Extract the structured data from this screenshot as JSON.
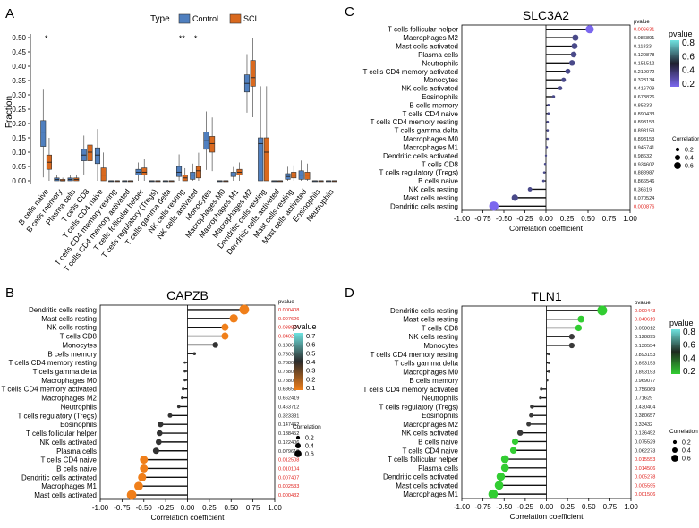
{
  "panels": {
    "a": {
      "letter": "A",
      "ylabel": "Fraction",
      "legend": {
        "title": "Type",
        "items": [
          "Control",
          "SCI"
        ],
        "colors": [
          "#4f7fbf",
          "#d9691e"
        ]
      },
      "yticks": [
        "0.00",
        "0.05",
        "0.10",
        "0.15",
        "0.20",
        "0.25",
        "0.30",
        "0.35",
        "0.40",
        "0.45",
        "0.50"
      ],
      "stars": [
        {
          "category": "B cells naive",
          "text": "*"
        },
        {
          "category": "NK cells resting",
          "text": "**"
        },
        {
          "category": "NK cells activated",
          "text": "*"
        }
      ]
    },
    "b": {
      "letter": "B"
    },
    "c": {
      "letter": "C"
    },
    "d": {
      "letter": "D"
    }
  },
  "chart_data": [
    {
      "id": "a",
      "type": "boxplot",
      "ylim": [
        0,
        0.5
      ],
      "ylabel": "Fraction",
      "categories": [
        "B cells naive",
        "B cells memory",
        "Plasma cells",
        "T cells CD8",
        "T cells CD4 naive",
        "T cells CD4 memory resting",
        "T cells CD4 memory activated",
        "T cells follicular helper",
        "T cells regulatory (Tregs)",
        "T cells gamma delta",
        "NK cells resting",
        "NK cells activated",
        "Monocytes",
        "Macrophages M0",
        "Macrophages M1",
        "Macrophages M2",
        "Dendritic cells resting",
        "Dendritic cells activated",
        "Mast cells resting",
        "Mast cells activated",
        "Eosinophils",
        "Neutrophils"
      ],
      "series": [
        {
          "name": "Control",
          "medians": [
            0.17,
            0.005,
            0.005,
            0.09,
            0.09,
            0.0,
            0.0,
            0.03,
            0.0,
            0.0,
            0.03,
            0.02,
            0.14,
            0.0,
            0.02,
            0.34,
            0.13,
            0.0,
            0.015,
            0.02,
            0.0,
            0.0
          ],
          "q1": [
            0.12,
            0.0,
            0.0,
            0.07,
            0.06,
            0.0,
            0.0,
            0.02,
            0.0,
            0.0,
            0.015,
            0.005,
            0.11,
            0.0,
            0.015,
            0.31,
            0.0,
            0.0,
            0.005,
            0.005,
            0.0,
            0.0
          ],
          "q3": [
            0.21,
            0.01,
            0.01,
            0.11,
            0.115,
            0.0,
            0.0,
            0.04,
            0.0,
            0.0,
            0.05,
            0.03,
            0.17,
            0.0,
            0.03,
            0.37,
            0.15,
            0.0,
            0.025,
            0.035,
            0.0,
            0.0
          ]
        },
        {
          "name": "SCI",
          "medians": [
            0.065,
            0.0,
            0.005,
            0.1,
            0.02,
            0.0,
            0.0,
            0.03,
            0.0,
            0.0,
            0.01,
            0.035,
            0.13,
            0.0,
            0.03,
            0.36,
            0.1,
            0.0,
            0.02,
            0.02,
            0.0,
            0.0
          ],
          "q1": [
            0.04,
            0.0,
            0.0,
            0.07,
            0.0,
            0.0,
            0.0,
            0.02,
            0.0,
            0.0,
            0.0,
            0.01,
            0.1,
            0.0,
            0.02,
            0.33,
            0.0,
            0.0,
            0.01,
            0.005,
            0.0,
            0.0
          ],
          "q3": [
            0.09,
            0.005,
            0.01,
            0.125,
            0.045,
            0.0,
            0.0,
            0.045,
            0.0,
            0.0,
            0.02,
            0.05,
            0.155,
            0.0,
            0.04,
            0.42,
            0.15,
            0.0,
            0.03,
            0.03,
            0.0,
            0.0
          ]
        }
      ]
    },
    {
      "id": "b",
      "type": "lollipop",
      "title": "CAPZB",
      "xlabel": "Correlation coefficient",
      "xlim": [
        -1.0,
        1.0
      ],
      "xticks": [
        "-1.00",
        "-0.75",
        "-0.50",
        "-0.25",
        "0.00",
        "0.25",
        "0.50",
        "0.75",
        "1.00"
      ],
      "pvalue_header": "pvalue",
      "legend_title": "pvalue",
      "legend_ticks": [
        "0.7",
        "0.6",
        "0.5",
        "0.4",
        "0.3",
        "0.2",
        "0.1"
      ],
      "size_title": "Correlation",
      "size_items": [
        "0.2",
        "0.4",
        "0.6"
      ],
      "rows": [
        {
          "label": "Dendritic cells resting",
          "r": 0.65,
          "p": 0.000408,
          "ptext": "0.000408"
        },
        {
          "label": "Mast cells resting",
          "r": 0.53,
          "p": 0.007626,
          "ptext": "0.007626"
        },
        {
          "label": "NK cells resting",
          "r": 0.43,
          "p": 0.038874,
          "ptext": "0.038874"
        },
        {
          "label": "T cells CD8",
          "r": 0.43,
          "p": 0.040292,
          "ptext": "0.040292"
        },
        {
          "label": "Monocytes",
          "r": 0.32,
          "p": 0.138654,
          "ptext": "0.138654"
        },
        {
          "label": "B cells memory",
          "r": 0.08,
          "p": 0.750305,
          "ptext": "0.750305"
        },
        {
          "label": "T cells CD4 memory resting",
          "r": -0.03,
          "p": 0.788089,
          "ptext": "0.788089"
        },
        {
          "label": "T cells gamma delta",
          "r": -0.03,
          "p": 0.788089,
          "ptext": "0.788089"
        },
        {
          "label": "Macrophages M0",
          "r": -0.03,
          "p": 0.788089,
          "ptext": "0.788089"
        },
        {
          "label": "T cells CD4 memory activated",
          "r": -0.05,
          "p": 0.68651,
          "ptext": "0.68651"
        },
        {
          "label": "Macrophages M2",
          "r": -0.06,
          "p": 0.662419,
          "ptext": "0.662419"
        },
        {
          "label": "Neutrophils",
          "r": -0.1,
          "p": 0.463712,
          "ptext": "0.463712"
        },
        {
          "label": "T cells regulatory (Tregs)",
          "r": -0.2,
          "p": 0.323381,
          "ptext": "0.323381"
        },
        {
          "label": "Eosinophils",
          "r": -0.31,
          "p": 0.147462,
          "ptext": "0.147462"
        },
        {
          "label": "T cells follicular helper",
          "r": -0.32,
          "p": 0.138452,
          "ptext": "0.138452"
        },
        {
          "label": "NK cells activated",
          "r": -0.33,
          "p": 0.122406,
          "ptext": "0.122406"
        },
        {
          "label": "Plasma cells",
          "r": -0.36,
          "p": 0.079619,
          "ptext": "0.079619"
        },
        {
          "label": "T cells CD4 naive",
          "r": -0.5,
          "p": 0.012508,
          "ptext": "0.012508"
        },
        {
          "label": "B cells naive",
          "r": -0.5,
          "p": 0.010104,
          "ptext": "0.010104"
        },
        {
          "label": "Dendritic cells activated",
          "r": -0.52,
          "p": 0.007407,
          "ptext": "0.007407"
        },
        {
          "label": "Macrophages M1",
          "r": -0.56,
          "p": 0.002533,
          "ptext": "0.002533"
        },
        {
          "label": "Mast cells activated",
          "r": -0.64,
          "p": 0.000432,
          "ptext": "0.000432"
        }
      ]
    },
    {
      "id": "c",
      "type": "lollipop",
      "title": "SLC3A2",
      "xlabel": "Correlation coefficient",
      "xlim": [
        -1.0,
        1.0
      ],
      "xticks": [
        "-1.00",
        "-0.75",
        "-0.50",
        "-0.25",
        "0.00",
        "0.25",
        "0.50",
        "0.75",
        "1.00"
      ],
      "pvalue_header": "pvalue",
      "legend_title": "pvalue",
      "legend_ticks": [
        "0.8",
        "0.6",
        "0.4",
        "0.2"
      ],
      "size_title": "Correlation",
      "size_items": [
        "0.2",
        "0.4",
        "0.6"
      ],
      "rows": [
        {
          "label": "T cells follicular helper",
          "r": 0.52,
          "p": 0.006631,
          "ptext": "0.006631"
        },
        {
          "label": "Macrophages M2",
          "r": 0.35,
          "p": 0.086891,
          "ptext": "0.086891"
        },
        {
          "label": "Mast cells activated",
          "r": 0.34,
          "p": 0.11823,
          "ptext": "0.11823"
        },
        {
          "label": "Plasma cells",
          "r": 0.33,
          "p": 0.120878,
          "ptext": "0.120878"
        },
        {
          "label": "Neutrophils",
          "r": 0.31,
          "p": 0.151512,
          "ptext": "0.151512"
        },
        {
          "label": "T cells CD4 memory activated",
          "r": 0.26,
          "p": 0.219072,
          "ptext": "0.219072"
        },
        {
          "label": "Monocytes",
          "r": 0.21,
          "p": 0.323134,
          "ptext": "0.323134"
        },
        {
          "label": "NK cells activated",
          "r": 0.17,
          "p": 0.416709,
          "ptext": "0.416709"
        },
        {
          "label": "Eosinophils",
          "r": 0.09,
          "p": 0.673826,
          "ptext": "0.673826"
        },
        {
          "label": "B cells memory",
          "r": 0.03,
          "p": 0.85233,
          "ptext": "0.85233"
        },
        {
          "label": "T cells CD4 naive",
          "r": 0.03,
          "p": 0.890433,
          "ptext": "0.890433"
        },
        {
          "label": "T cells CD4 memory resting",
          "r": 0.02,
          "p": 0.893153,
          "ptext": "0.893153"
        },
        {
          "label": "T cells gamma delta",
          "r": 0.02,
          "p": 0.893153,
          "ptext": "0.893153"
        },
        {
          "label": "Macrophages M0",
          "r": 0.02,
          "p": 0.893153,
          "ptext": "0.893153"
        },
        {
          "label": "Macrophages M1",
          "r": 0.01,
          "p": 0.945741,
          "ptext": "0.945741"
        },
        {
          "label": "Dendritic cells activated",
          "r": 0.0,
          "p": 0.98632,
          "ptext": "0.98632"
        },
        {
          "label": "T cells CD8",
          "r": -0.01,
          "p": 0.934602,
          "ptext": "0.934602"
        },
        {
          "label": "T cells regulatory (Tregs)",
          "r": -0.02,
          "p": 0.888987,
          "ptext": "0.888987"
        },
        {
          "label": "B cells naive",
          "r": -0.03,
          "p": 0.866546,
          "ptext": "0.866546"
        },
        {
          "label": "NK cells resting",
          "r": -0.19,
          "p": 0.36619,
          "ptext": "0.36619"
        },
        {
          "label": "Mast cells resting",
          "r": -0.37,
          "p": 0.070524,
          "ptext": "0.070524"
        },
        {
          "label": "Dendritic cells resting",
          "r": -0.62,
          "p": 0.000876,
          "ptext": "0.000876"
        }
      ]
    },
    {
      "id": "d",
      "type": "lollipop",
      "title": "TLN1",
      "xlabel": "Correlation coefficient",
      "xlim": [
        -1.0,
        1.0
      ],
      "xticks": [
        "-1.00",
        "-0.75",
        "-0.50",
        "-0.25",
        "0.00",
        "0.25",
        "0.50",
        "0.75",
        "1.00"
      ],
      "pvalue_header": "pvalue",
      "legend_title": "pvalue",
      "legend_ticks": [
        "0.8",
        "0.6",
        "0.4",
        "0.2"
      ],
      "size_title": "Correlation",
      "size_items": [
        "0.2",
        "0.4",
        "0.6"
      ],
      "rows": [
        {
          "label": "Dendritic cells resting",
          "r": 0.66,
          "p": 0.000443,
          "ptext": "0.000443"
        },
        {
          "label": "Mast cells resting",
          "r": 0.41,
          "p": 0.040619,
          "ptext": "0.040619"
        },
        {
          "label": "T cells CD8",
          "r": 0.38,
          "p": 0.058012,
          "ptext": "0.058012"
        },
        {
          "label": "NK cells resting",
          "r": 0.3,
          "p": 0.128895,
          "ptext": "0.128895"
        },
        {
          "label": "Monocytes",
          "r": 0.3,
          "p": 0.130554,
          "ptext": "0.130554"
        },
        {
          "label": "T cells CD4 memory resting",
          "r": 0.03,
          "p": 0.893153,
          "ptext": "0.893153"
        },
        {
          "label": "T cells gamma delta",
          "r": 0.03,
          "p": 0.893153,
          "ptext": "0.893153"
        },
        {
          "label": "Macrophages M0",
          "r": 0.03,
          "p": 0.893153,
          "ptext": "0.893153"
        },
        {
          "label": "B cells memory",
          "r": 0.01,
          "p": 0.969077,
          "ptext": "0.969077"
        },
        {
          "label": "T cells CD4 memory activated",
          "r": -0.06,
          "p": 0.756069,
          "ptext": "0.756069"
        },
        {
          "label": "Neutrophils",
          "r": -0.07,
          "p": 0.71629,
          "ptext": "0.71629"
        },
        {
          "label": "T cells regulatory (Tregs)",
          "r": -0.17,
          "p": 0.430404,
          "ptext": "0.430404"
        },
        {
          "label": "Eosinophils",
          "r": -0.18,
          "p": 0.380657,
          "ptext": "0.380657"
        },
        {
          "label": "Macrophages M2",
          "r": -0.21,
          "p": 0.33432,
          "ptext": "0.33432"
        },
        {
          "label": "NK cells activated",
          "r": -0.31,
          "p": 0.136452,
          "ptext": "0.136452"
        },
        {
          "label": "B cells naive",
          "r": -0.37,
          "p": 0.075529,
          "ptext": "0.075529"
        },
        {
          "label": "T cells CD4 naive",
          "r": -0.39,
          "p": 0.062273,
          "ptext": "0.062273"
        },
        {
          "label": "T cells follicular helper",
          "r": -0.49,
          "p": 0.015553,
          "ptext": "0.015553"
        },
        {
          "label": "Plasma cells",
          "r": -0.49,
          "p": 0.014506,
          "ptext": "0.014506"
        },
        {
          "label": "Dendritic cells activated",
          "r": -0.54,
          "p": 0.005278,
          "ptext": "0.005278"
        },
        {
          "label": "Mast cells activated",
          "r": -0.56,
          "p": 0.005595,
          "ptext": "0.005595"
        },
        {
          "label": "Macrophages M1",
          "r": -0.63,
          "p": 0.001506,
          "ptext": "0.001506"
        }
      ]
    }
  ]
}
